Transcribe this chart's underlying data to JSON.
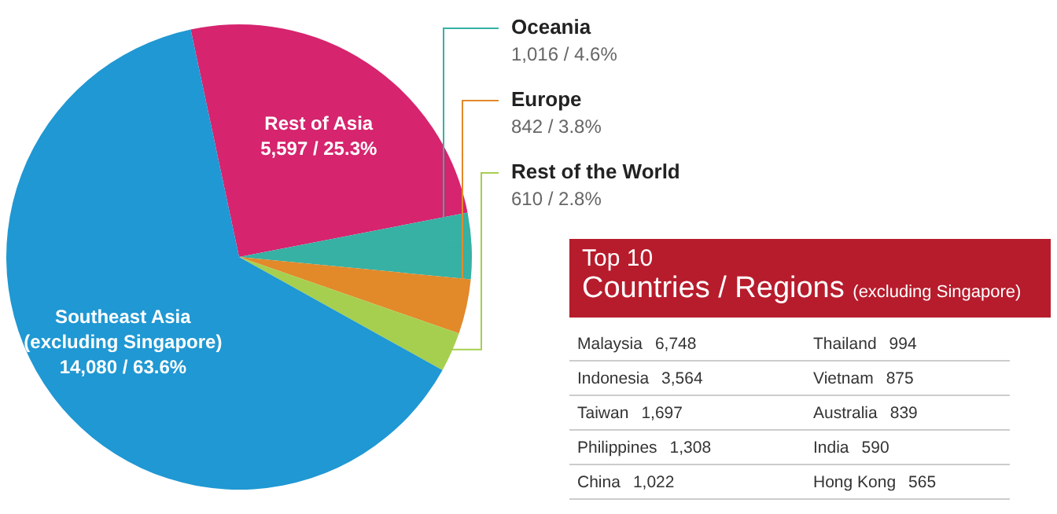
{
  "chart_data": [
    {
      "type": "pie",
      "categories": [
        "Rest of Asia",
        "Oceania",
        "Europe",
        "Rest of the World",
        "Southeast Asia (excluding Singapore)"
      ],
      "values": [
        5597,
        1016,
        842,
        610,
        14080
      ],
      "value_labels": [
        "5,597 / 25.3%",
        "1,016 / 4.6%",
        "842 / 3.8%",
        "610 / 2.8%",
        "14,080 / 63.6%"
      ],
      "colors": [
        "#d6246e",
        "#36b1a4",
        "#e2892a",
        "#a6cf4f",
        "#1f98d3"
      ]
    },
    {
      "type": "other",
      "title": "Top 10",
      "subtitle": "Countries / Regions",
      "annotations": [
        "(excluding Singapore)"
      ],
      "categories": [
        "Malaysia",
        "Indonesia",
        "Taiwan",
        "Philippines",
        "China",
        "Thailand",
        "Vietnam",
        "Australia",
        "India",
        "Hong Kong"
      ],
      "values": [
        6748,
        3564,
        1697,
        1308,
        1022,
        994,
        875,
        839,
        590,
        565
      ],
      "value_labels": [
        "6,748",
        "3,564",
        "1,697",
        "1,308",
        "1,022",
        "994",
        "875",
        "839",
        "590",
        "565"
      ]
    }
  ]
}
